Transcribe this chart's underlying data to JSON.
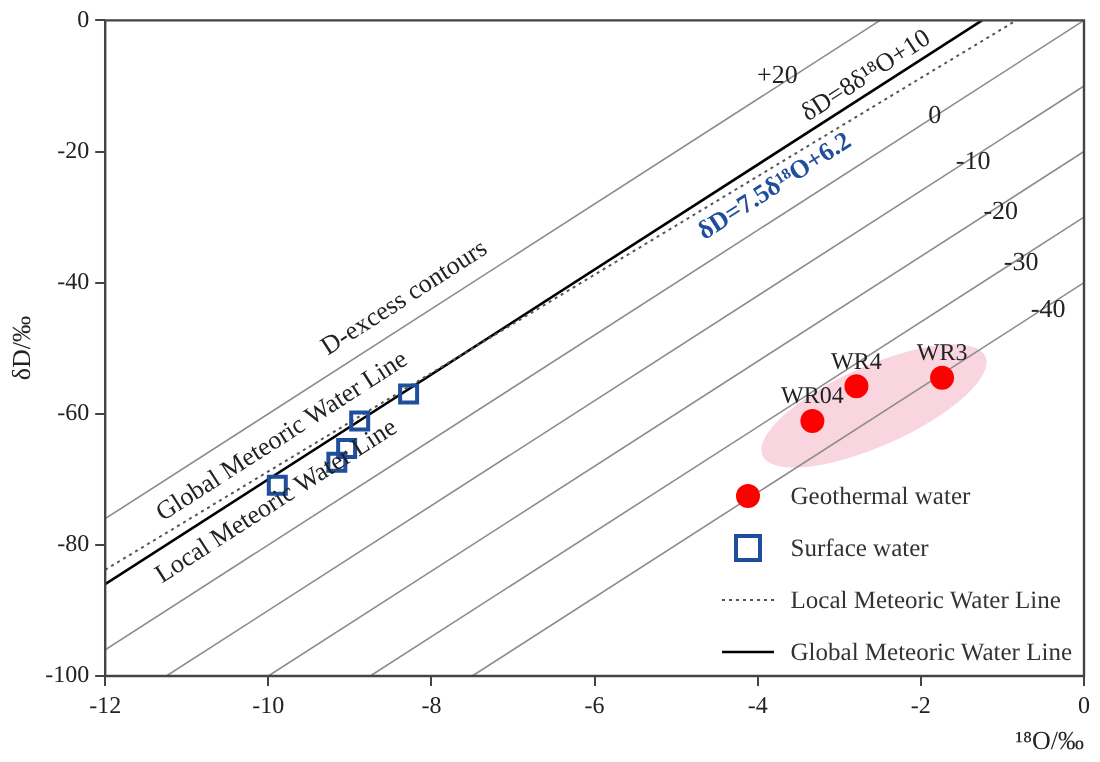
{
  "chart_data": {
    "type": "scatter",
    "xlabel": "¹⁸O/‰",
    "ylabel": "δD/‰",
    "xlim": [
      -12,
      0
    ],
    "xticks": [
      -12,
      -10,
      -8,
      -6,
      -4,
      -2,
      0
    ],
    "ylim": [
      -100,
      0
    ],
    "yticks": [
      -100,
      -80,
      -60,
      -40,
      -20,
      0
    ],
    "grid": false,
    "legend": "bottom right",
    "series": [
      {
        "name": "Geothermal water",
        "type": "scatter",
        "marker": "circle",
        "color": "#ff0000",
        "x": [
          -3.33,
          -2.79,
          -1.74
        ],
        "values": [
          -61.1,
          -55.8,
          -54.5
        ]
      },
      {
        "name": "Surface water",
        "type": "scatter",
        "marker": "square",
        "color": "#1f4e9c",
        "x": [
          -9.89,
          -9.16,
          -9.04,
          -8.88,
          -8.28
        ],
        "values": [
          -70.9,
          -67.4,
          -65.3,
          -61.1,
          -57.0
        ]
      },
      {
        "name": "Local Meteoric Water Line",
        "type": "line",
        "marker": "none",
        "line_style": "dotted",
        "color": "#555555",
        "x": [
          -12,
          -0.83
        ],
        "values": [
          -83.8,
          0
        ]
      },
      {
        "name": "Global Meteoric Water Line",
        "type": "line",
        "marker": "none",
        "line_style": "solid",
        "color": "#000000",
        "x": [
          -12,
          -1.25
        ],
        "values": [
          -86,
          0
        ]
      },
      {
        "type": "line",
        "marker": "none",
        "line_style": "solid",
        "color": "#8c8c8c",
        "x": [
          -12,
          -2.5
        ],
        "values": [
          -76,
          0
        ]
      },
      {
        "type": "line",
        "marker": "none",
        "line_style": "solid",
        "color": "#8c8c8c",
        "x": [
          -12,
          0
        ],
        "values": [
          -96,
          0
        ]
      },
      {
        "type": "line",
        "marker": "none",
        "line_style": "solid",
        "color": "#8c8c8c",
        "x": [
          -11.25,
          0
        ],
        "values": [
          -100,
          -10
        ]
      },
      {
        "type": "line",
        "marker": "none",
        "line_style": "solid",
        "color": "#8c8c8c",
        "x": [
          -10,
          0
        ],
        "values": [
          -100,
          -20
        ]
      },
      {
        "type": "line",
        "marker": "none",
        "line_style": "solid",
        "color": "#8c8c8c",
        "x": [
          -8.75,
          0
        ],
        "values": [
          -100,
          -30
        ]
      },
      {
        "type": "line",
        "marker": "none",
        "line_style": "solid",
        "color": "#8c8c8c",
        "x": [
          -7.5,
          0
        ],
        "values": [
          -100,
          -40
        ]
      }
    ],
    "annotations": [
      "δD=8δ¹⁸O+10",
      "δD=7.5δ¹⁸O+6.2",
      "D-excess contours",
      "Global Meteoric Water Line",
      "Local Meteoric Water Line",
      {
        "text": "+20",
        "x": -3.76,
        "y": -8.5
      },
      {
        "text": "0",
        "x": -1.83,
        "y": -14.6
      },
      {
        "text": "-10",
        "x": -1.36,
        "y": -21.6
      },
      {
        "text": "-20",
        "x": -1.02,
        "y": -29.2
      },
      {
        "text": "-30",
        "x": -0.77,
        "y": -37.1
      },
      {
        "text": "-40",
        "x": -0.44,
        "y": -44.2
      },
      {
        "text": "WR04",
        "x": -3.33,
        "y": -61.1
      },
      {
        "text": "WR4",
        "x": -2.79,
        "y": -55.8
      },
      {
        "text": "WR3",
        "x": -1.74,
        "y": -54.5
      }
    ]
  }
}
